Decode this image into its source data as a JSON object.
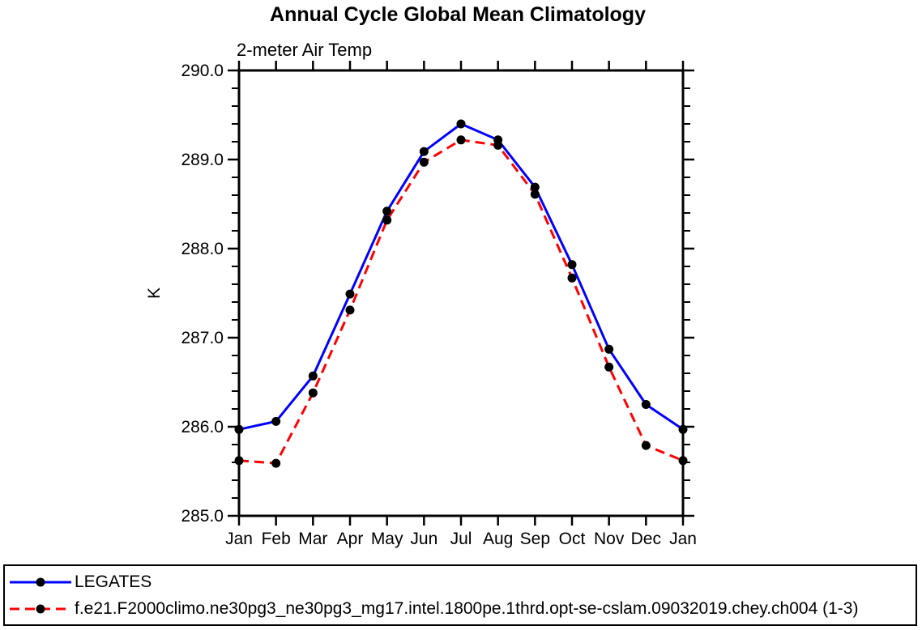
{
  "title": "Annual Cycle Global Mean Climatology",
  "chart_data": {
    "type": "line",
    "title": "Annual Cycle Global Mean Climatology",
    "subtitle": "2-meter Air Temp",
    "ylabel": "K",
    "xlabel": "",
    "categories": [
      "Jan",
      "Feb",
      "Mar",
      "Apr",
      "May",
      "Jun",
      "Jul",
      "Aug",
      "Sep",
      "Oct",
      "Nov",
      "Dec",
      "Jan"
    ],
    "ylim": [
      285.0,
      290.0
    ],
    "ytick_major_interval": 1.0,
    "ytick_minor_interval": 0.2,
    "ytick_label_format": "1-decimal",
    "grid": false,
    "legend_position": "bottom-box-full-width",
    "frame_color": "#000000",
    "marker_color": "#000000",
    "series": [
      {
        "name": "LEGATES",
        "color": "#0000ff",
        "style": "solid",
        "marker": "filled-circle",
        "values": [
          285.97,
          286.06,
          286.57,
          287.49,
          288.42,
          289.09,
          289.4,
          289.22,
          288.69,
          287.82,
          286.87,
          286.25,
          285.97
        ]
      },
      {
        "name": "f.e21.F2000climo.ne30pg3_ne30pg3_mg17.intel.1800pe.1thrd.opt-se-cslam.09032019.chey.ch004 (1-3)",
        "color": "#ff0000",
        "style": "dashed",
        "marker": "filled-circle",
        "values": [
          285.62,
          285.59,
          286.38,
          287.31,
          288.32,
          288.97,
          289.22,
          289.16,
          288.61,
          287.67,
          286.67,
          285.79,
          285.62
        ]
      }
    ]
  }
}
